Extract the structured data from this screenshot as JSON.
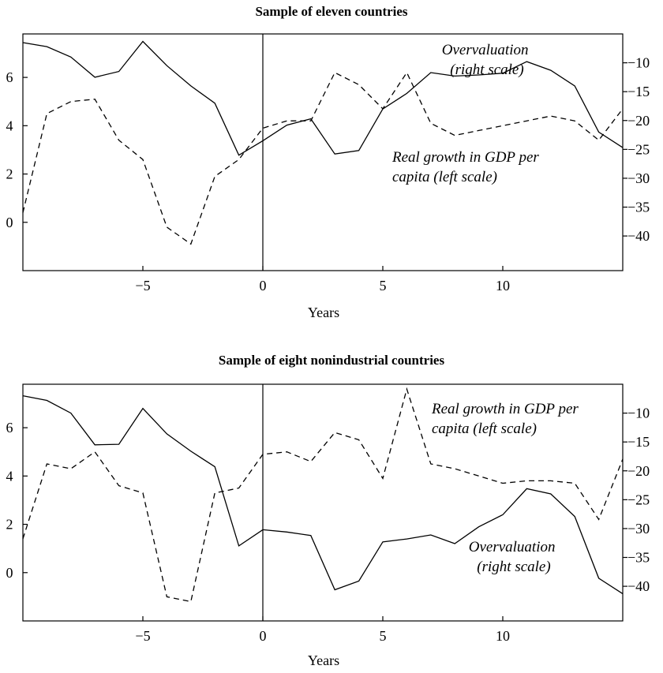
{
  "chart_data": [
    {
      "type": "line",
      "title": "Sample of eleven countries",
      "xlabel": "Years",
      "xlim": [
        -10,
        15
      ],
      "xticks": [
        -5,
        0,
        5,
        10
      ],
      "ylim_left": [
        -2,
        7.8
      ],
      "yticks_left": [
        0,
        2,
        4,
        6
      ],
      "ylim_right": [
        -46,
        -5
      ],
      "yticks_right": [
        -10,
        -15,
        -20,
        -25,
        -30,
        -35,
        -40
      ],
      "vline_x": 0,
      "x": [
        -10,
        -9,
        -8,
        -7,
        -6,
        -5,
        -4,
        -3,
        -2,
        -1,
        0,
        1,
        2,
        3,
        4,
        5,
        6,
        7,
        8,
        9,
        10,
        11,
        12,
        13,
        14,
        15
      ],
      "series": [
        {
          "axis": "right",
          "style": "solid",
          "values": [
            -6.5,
            -7.2,
            -9,
            -12.5,
            -11.5,
            -6.3,
            -10.5,
            -14,
            -17,
            -26,
            -23.5,
            -20.8,
            -19.7,
            -25.8,
            -25.2,
            -18,
            -15.3,
            -11.7,
            -12.3,
            -12.1,
            -11.8,
            -9.8,
            -11.3,
            -14,
            -22,
            -24.7
          ]
        },
        {
          "axis": "left",
          "style": "dashed",
          "values": [
            0.4,
            4.5,
            5,
            5.1,
            3.4,
            2.6,
            -0.2,
            -0.9,
            1.9,
            2.6,
            3.9,
            4.2,
            4.2,
            6.2,
            5.7,
            4.7,
            6.2,
            4.1,
            3.6,
            3.8,
            4,
            4.2,
            4.4,
            4.2,
            3.4,
            4.7
          ]
        }
      ],
      "annotations": [
        {
          "lines": [
            "Overvaluation",
            "(right scale)"
          ]
        },
        {
          "lines": [
            "Real growth in GDP per",
            "capita (left scale)"
          ]
        }
      ]
    },
    {
      "type": "line",
      "title": "Sample of eight nonindustrial countries",
      "xlabel": "Years",
      "xlim": [
        -10,
        15
      ],
      "xticks": [
        -5,
        0,
        5,
        10
      ],
      "ylim_left": [
        -2,
        7.8
      ],
      "yticks_left": [
        0,
        2,
        4,
        6
      ],
      "ylim_right": [
        -46,
        -5
      ],
      "yticks_right": [
        -10,
        -15,
        -20,
        -25,
        -30,
        -35,
        -40
      ],
      "vline_x": 0,
      "x": [
        -10,
        -9,
        -8,
        -7,
        -6,
        -5,
        -4,
        -3,
        -2,
        -1,
        0,
        1,
        2,
        3,
        4,
        5,
        6,
        7,
        8,
        9,
        10,
        11,
        12,
        13,
        14,
        15
      ],
      "series": [
        {
          "axis": "right",
          "style": "solid",
          "values": [
            -7,
            -7.8,
            -10,
            -15.5,
            -15.4,
            -9.2,
            -13.6,
            -16.6,
            -19.3,
            -33,
            -30.2,
            -30.6,
            -31.2,
            -40.6,
            -39.1,
            -32.3,
            -31.8,
            -31.1,
            -32.6,
            -29.7,
            -27.6,
            -23.1,
            -24,
            -27.9,
            -38.6,
            -41.3
          ]
        },
        {
          "axis": "left",
          "style": "dashed",
          "values": [
            1.4,
            4.5,
            4.3,
            5,
            3.6,
            3.3,
            -1,
            -1.2,
            3.3,
            3.5,
            4.9,
            5,
            4.6,
            5.8,
            5.5,
            3.9,
            7.6,
            4.5,
            4.3,
            4,
            3.7,
            3.8,
            3.8,
            3.7,
            2.2,
            4.7
          ]
        }
      ],
      "annotations": [
        {
          "lines": [
            "Real growth in GDP per",
            "capita (left scale)"
          ]
        },
        {
          "lines": [
            "Overvaluation",
            "(right scale)"
          ]
        }
      ]
    }
  ]
}
